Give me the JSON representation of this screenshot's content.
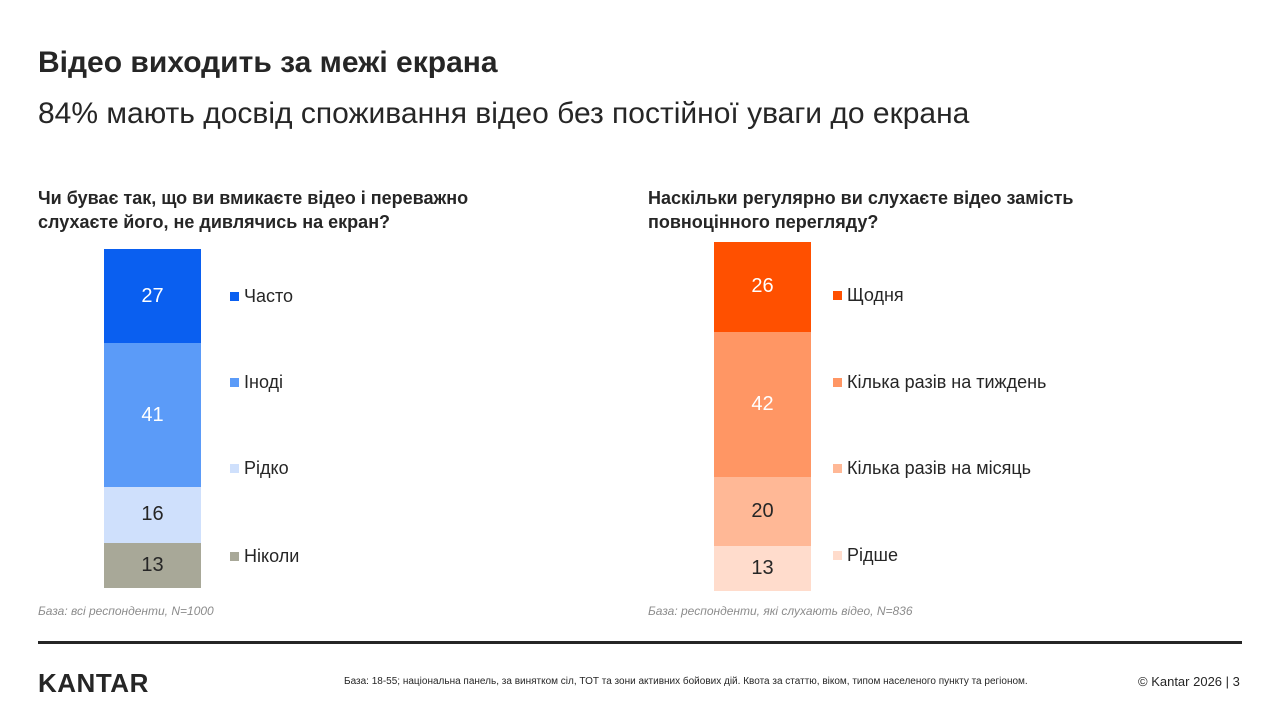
{
  "title": "Відео виходить за межі екрана",
  "subtitle": "84% мають досвід споживання відео без постійної уваги до екрана",
  "chart_data": [
    {
      "type": "bar",
      "title": "Чи буває так, що ви вмикаєте відео і переважно слухаєте його, не дивлячись на екран?",
      "stacked": true,
      "unit": "%",
      "base": "База: всі респонденти, N=1000",
      "categories": [
        "Часто",
        "Іноді",
        "Рідко",
        "Ніколи"
      ],
      "values": [
        27,
        41,
        16,
        13
      ],
      "colors": [
        "#0a5ff0",
        "#5b9bf8",
        "#cfe0fc",
        "#a8a898"
      ],
      "label_colors": [
        "#ffffff",
        "#ffffff",
        "#262626",
        "#262626"
      ]
    },
    {
      "type": "bar",
      "title": "Наскільки регулярно ви слухаєте відео замість повноцінного перегляду?",
      "stacked": true,
      "unit": "%",
      "base": "База: респонденти, які слухають відео, N=836",
      "categories": [
        "Щодня",
        "Кілька разів на тиждень",
        "Кілька разів на місяць",
        "Рідше"
      ],
      "values": [
        26,
        42,
        20,
        13
      ],
      "colors": [
        "#ff5000",
        "#ff9664",
        "#ffb896",
        "#ffdccc"
      ],
      "label_colors": [
        "#ffffff",
        "#ffffff",
        "#262626",
        "#262626"
      ]
    }
  ],
  "footer": {
    "logo_k": "K",
    "logo_rest": "ANTAR",
    "logo_accent": "#f5b400",
    "note": "База: 18-55; національна панель, за винятком сіл, ТОТ та зони активних бойових дій. Квота за статтю, віком, типом населеного пункту та регіоном.",
    "copyright": "© Kantar 2026 | 3"
  }
}
